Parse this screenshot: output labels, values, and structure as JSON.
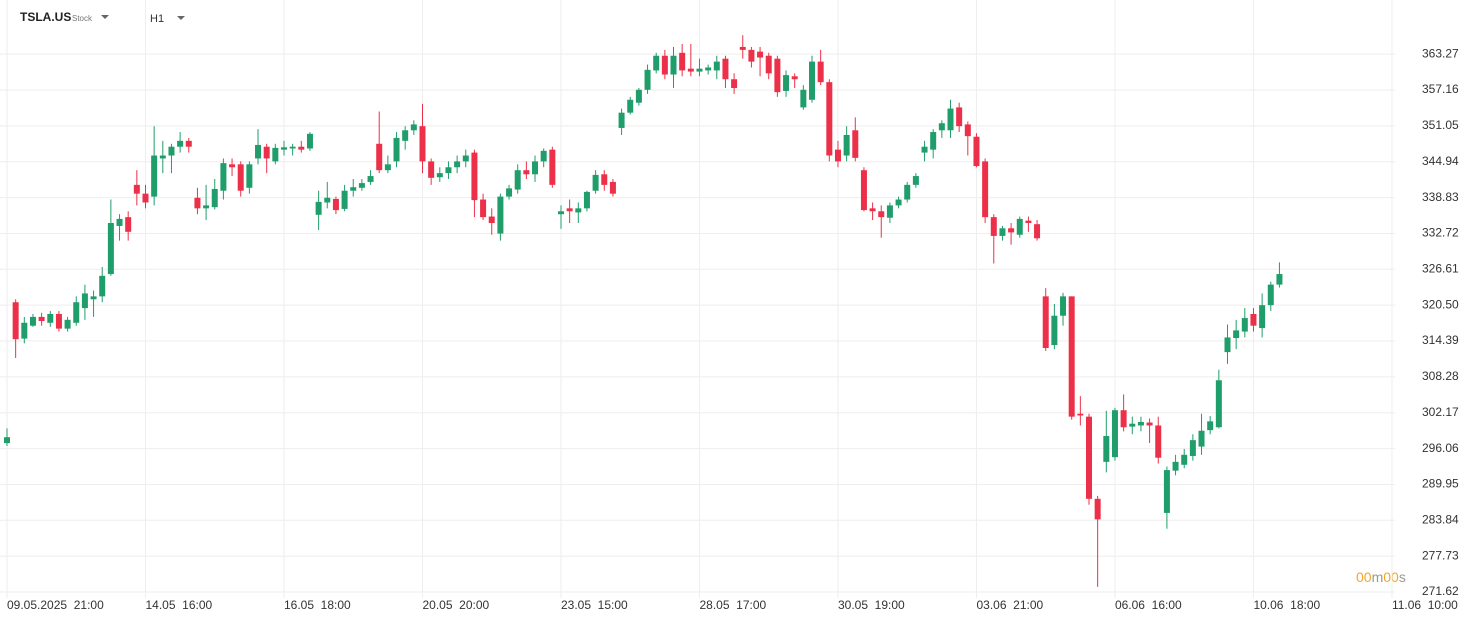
{
  "header": {
    "symbol": "TSLA.US",
    "instrument_type": "Stock",
    "timeframe": "H1",
    "countdown": [
      "00",
      "m",
      "00",
      "s"
    ]
  },
  "chart_data": {
    "type": "candlestick",
    "grid": true,
    "up_color": "#1f9e6b",
    "down_color": "#ec3049",
    "ylim": [
      270.6,
      372.5
    ],
    "yticks": [
      271.62,
      277.73,
      283.84,
      289.95,
      296.06,
      302.17,
      308.28,
      314.39,
      {
        "value": 320.5,
        "label": "320.50"
      },
      326.61,
      332.72,
      338.83,
      344.94,
      351.05,
      357.16,
      363.27
    ],
    "categories": [
      "09.05.2025  21:00",
      null,
      null,
      null,
      null,
      null,
      null,
      null,
      null,
      null,
      null,
      null,
      null,
      null,
      null,
      null,
      "14.05  16:00",
      null,
      null,
      null,
      null,
      null,
      null,
      null,
      null,
      null,
      null,
      null,
      null,
      null,
      null,
      null,
      "16.05  18:00",
      null,
      null,
      null,
      null,
      null,
      null,
      null,
      null,
      null,
      null,
      null,
      null,
      null,
      null,
      null,
      "20.05  20:00",
      null,
      null,
      null,
      null,
      null,
      null,
      null,
      null,
      null,
      null,
      null,
      null,
      null,
      null,
      null,
      "23.05  15:00",
      null,
      null,
      null,
      null,
      null,
      null,
      null,
      null,
      null,
      null,
      null,
      null,
      null,
      null,
      null,
      "28.05  17:00",
      null,
      null,
      null,
      null,
      null,
      null,
      null,
      null,
      null,
      null,
      null,
      null,
      null,
      null,
      null,
      "30.05  19:00",
      null,
      null,
      null,
      null,
      null,
      null,
      null,
      null,
      null,
      null,
      null,
      null,
      null,
      null,
      null,
      "03.06  21:00",
      null,
      null,
      null,
      null,
      null,
      null,
      null,
      null,
      null,
      null,
      null,
      null,
      null,
      null,
      null,
      "06.06  16:00",
      null,
      null,
      null,
      null,
      null,
      null,
      null,
      null,
      null,
      null,
      null,
      null,
      null,
      null,
      null,
      "10.06  18:00",
      null,
      null,
      null,
      null,
      null,
      null,
      null,
      null,
      null,
      null,
      null,
      null,
      null,
      null,
      null,
      "11.06  10:00"
    ],
    "open": [
      297,
      321,
      314.8,
      317,
      318.5,
      317.5,
      319,
      316.5,
      317.5,
      320,
      321.5,
      322,
      325.8,
      334,
      335.5,
      341,
      339.5,
      339,
      345.5,
      346,
      347.5,
      348.5,
      338.8,
      337,
      337.2,
      340,
      344.5,
      344.5,
      340.5,
      345.5,
      347.5,
      345,
      347,
      347.2,
      347.5,
      347.2,
      335.9,
      338,
      338.6,
      336.9,
      340,
      340.5,
      341.5,
      348,
      343.5,
      345,
      348.5,
      350.3,
      351,
      345,
      342.3,
      343,
      344,
      345,
      346.5,
      338.5,
      335.6,
      332.7,
      339,
      340.2,
      343.5,
      342.8,
      345,
      347,
      336,
      337,
      336.3,
      337,
      340,
      342.8,
      341.5,
      350.7,
      353.3,
      355,
      357.2,
      360.5,
      363,
      359.8,
      363.5,
      360.8,
      360.3,
      360.5,
      360.5,
      362.5,
      359,
      364.5,
      364,
      363.7,
      363,
      362.5,
      357,
      359.5,
      354.2,
      355.5,
      362,
      358.5,
      347,
      346,
      350.3,
      343.5,
      337,
      336.5,
      335.4,
      337.5,
      338.5,
      341,
      346.5,
      347,
      350.3,
      350.3,
      354.2,
      351.3,
      349.2,
      345,
      335.5,
      332.3,
      333.6,
      332.5,
      334.9,
      334.3,
      322,
      313.7,
      318.7,
      322,
      302,
      301.5,
      287.5,
      293.8,
      294.6,
      302.6,
      299.8,
      300,
      300.5,
      300,
      285.1,
      292.3,
      293.3,
      294.8,
      296.4,
      299.2,
      299.7,
      312.5,
      314.9,
      316,
      319,
      316.6,
      320.5,
      324,
      null,
      null,
      null,
      null,
      null,
      null,
      null,
      null,
      null,
      null,
      null,
      null,
      null
    ],
    "high": [
      299.5,
      321.5,
      318.5,
      319,
      319.2,
      319.5,
      319.5,
      318.5,
      322,
      324,
      323,
      327,
      338.5,
      336,
      336.5,
      343.5,
      341,
      351,
      348.5,
      348,
      350,
      349,
      340.5,
      341,
      342,
      345.5,
      345.5,
      345,
      345,
      350.5,
      348,
      348,
      348.5,
      348,
      348.5,
      350,
      340,
      341.5,
      339,
      341,
      342,
      342,
      343.5,
      353.5,
      346,
      350,
      351,
      352,
      354.8,
      345.5,
      344,
      345,
      346,
      347,
      347,
      339.5,
      337,
      339.5,
      341,
      344.5,
      345,
      346,
      347.2,
      347.5,
      337.5,
      338.5,
      338,
      340,
      343.5,
      343.5,
      342,
      354,
      356,
      357.5,
      361.5,
      363.5,
      364,
      364.5,
      365,
      365,
      362.5,
      361.5,
      363,
      363,
      360,
      366.5,
      364.5,
      364.5,
      363.5,
      363,
      360.5,
      360,
      358,
      363,
      364,
      359,
      348.5,
      351,
      352.5,
      344,
      338,
      337.5,
      338,
      339,
      341.5,
      343,
      348.5,
      350.5,
      352,
      355.5,
      355,
      351.8,
      349.8,
      345.5,
      336,
      334,
      334.5,
      335.6,
      335.6,
      335,
      323.4,
      320.7,
      322.6,
      322,
      305,
      302,
      288,
      302.5,
      303,
      305.3,
      301.5,
      301.5,
      301.2,
      301.5,
      293,
      295,
      296,
      298.5,
      302,
      301.6,
      309.5,
      317.2,
      318,
      320,
      320,
      322.5,
      324.5,
      327.8,
      null,
      null,
      null,
      null,
      null,
      null,
      null,
      null,
      null,
      null,
      null,
      null,
      null
    ],
    "low": [
      296.5,
      311.5,
      314,
      316.8,
      317,
      316.8,
      316,
      316,
      317,
      318,
      318.5,
      321,
      325.5,
      331.5,
      331.5,
      337.5,
      337,
      337.5,
      343,
      343,
      346.5,
      346.5,
      336,
      335,
      336.8,
      338.5,
      342.5,
      339,
      339.5,
      344.5,
      343,
      344.5,
      346,
      346,
      346.5,
      346.8,
      333.3,
      337,
      336,
      336.5,
      339,
      340,
      341,
      343,
      343,
      344,
      347,
      349.5,
      343,
      341,
      341.5,
      342,
      343,
      344,
      335.5,
      335,
      332.5,
      331.5,
      338.5,
      339.5,
      342,
      341.5,
      344,
      340.5,
      333.5,
      334.5,
      334.5,
      336.5,
      339.5,
      340,
      339,
      349.5,
      353,
      354.5,
      356.5,
      360,
      359,
      357.5,
      359.5,
      359.5,
      359.5,
      359.8,
      359,
      357.5,
      356.5,
      362.5,
      361,
      359.5,
      359,
      356,
      356,
      357.5,
      353.8,
      355,
      358,
      345,
      344,
      345,
      345,
      336.5,
      335,
      332,
      334.5,
      337,
      338,
      340.5,
      345,
      345.5,
      349,
      349,
      350,
      346,
      344,
      334.5,
      327.6,
      331.5,
      330.8,
      332,
      333,
      331.5,
      312.7,
      313,
      317,
      301,
      300,
      286.5,
      272.5,
      292,
      294,
      299,
      298.5,
      299,
      297,
      293.5,
      282.4,
      291.5,
      292.7,
      294,
      295,
      298.5,
      299.5,
      310.5,
      313,
      315,
      316,
      315,
      319.5,
      323.5,
      null,
      null,
      null,
      null,
      null,
      null,
      null,
      null,
      null,
      null,
      null,
      null,
      null
    ],
    "close": [
      298,
      314.7,
      317.5,
      318.5,
      317.8,
      319,
      316.5,
      318,
      321,
      322.5,
      322,
      325.5,
      334.5,
      335.2,
      333,
      339.5,
      338,
      346,
      346,
      347.5,
      348.5,
      347.5,
      337,
      337.5,
      340.3,
      344.7,
      344,
      340,
      344.5,
      347.8,
      345.5,
      347.3,
      347.4,
      347.5,
      347,
      349.7,
      338.1,
      338.8,
      336.7,
      340,
      340.6,
      341.3,
      342.5,
      343.5,
      344.5,
      349,
      350.3,
      351.3,
      345,
      342.2,
      343,
      344,
      345,
      346,
      338.4,
      335.5,
      334.5,
      339,
      340.4,
      343.5,
      342.8,
      345,
      346.8,
      341,
      336.5,
      336.5,
      337,
      339.8,
      342.7,
      341,
      339.5,
      353.3,
      355.5,
      357.2,
      360.6,
      363,
      359.8,
      363,
      360.5,
      360.3,
      360.8,
      361,
      362,
      359,
      357.5,
      364,
      362,
      362.7,
      360,
      356.8,
      359.7,
      359,
      357.2,
      362,
      358.5,
      346,
      345,
      349.5,
      345.6,
      336.7,
      336.5,
      335.5,
      337.5,
      338.5,
      341,
      342.5,
      347.5,
      350,
      351.5,
      354,
      351,
      349.3,
      344.2,
      335.5,
      332.3,
      333.6,
      332.9,
      335.2,
      334.5,
      331.9,
      313.2,
      318.7,
      322,
      301.5,
      301.7,
      287.5,
      284,
      298.2,
      302.6,
      299.7,
      300.3,
      300.6,
      300,
      294.5,
      292.4,
      293.8,
      295,
      297.5,
      299.1,
      300.7,
      307.7,
      315,
      316.2,
      318.3,
      317,
      320.5,
      324,
      325.8,
      null,
      null,
      null,
      null,
      null,
      null,
      null,
      null,
      null,
      null,
      null,
      null,
      null
    ]
  }
}
